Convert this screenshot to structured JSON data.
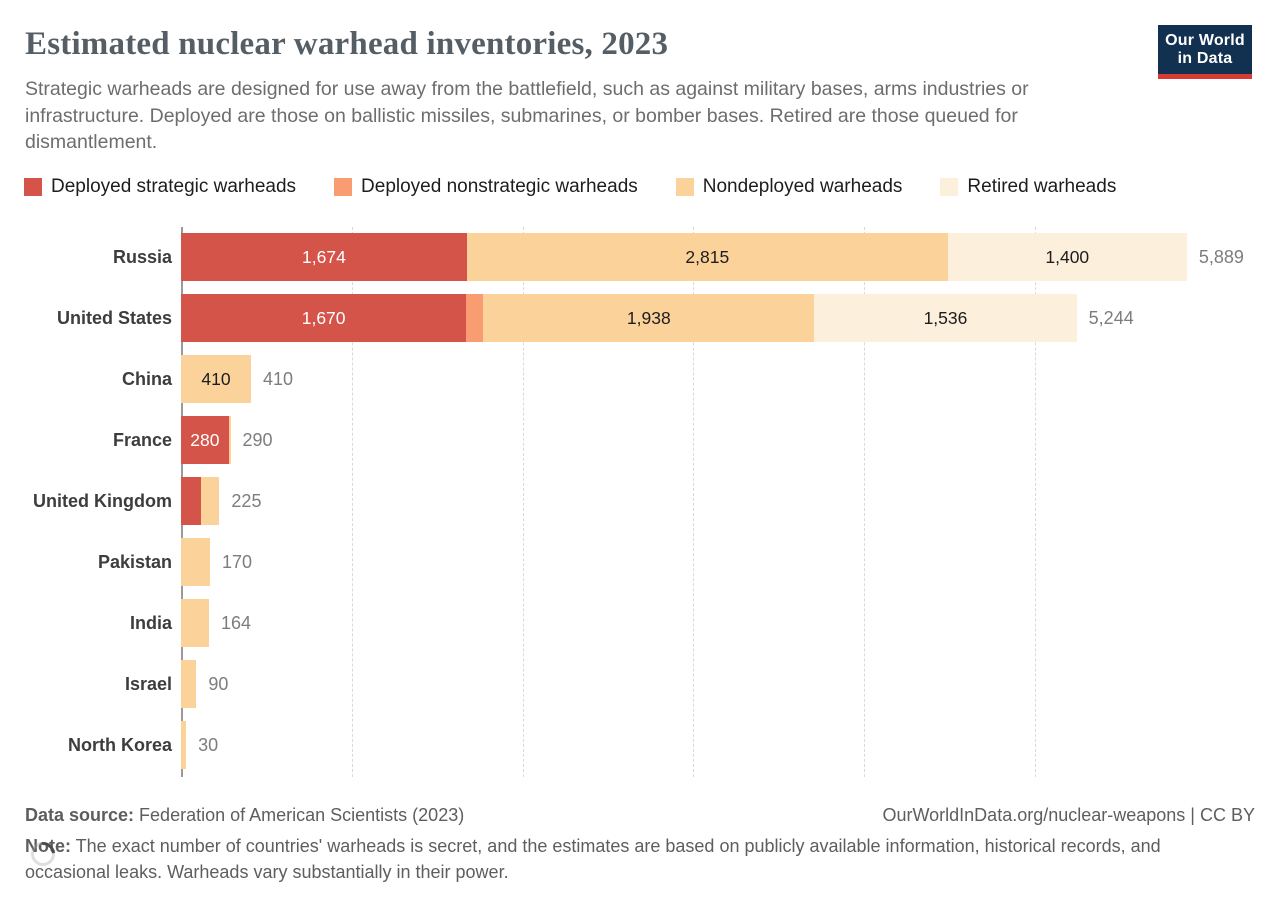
{
  "header": {
    "title": "Estimated nuclear warhead inventories, 2023",
    "subtitle": "Strategic warheads are designed for use away from the battlefield, such as against military bases, arms industries or infrastructure. Deployed are those on ballistic missiles, submarines, or bomber bases. Retired are those queued for dismantlement.",
    "logo": {
      "line1": "Our World",
      "line2": "in Data",
      "bg_color": "#12304f",
      "accent_color": "#d73b33"
    }
  },
  "chart_data": {
    "type": "bar",
    "orientation": "horizontal",
    "stacked": true,
    "title": "Estimated nuclear warhead inventories, 2023",
    "categories": [
      "Russia",
      "United States",
      "China",
      "France",
      "United Kingdom",
      "Pakistan",
      "India",
      "Israel",
      "North Korea"
    ],
    "series": [
      {
        "name": "Deployed strategic warheads",
        "color": "#d5544a",
        "label_color": "#ffffff",
        "values": [
          1674,
          1670,
          0,
          280,
          120,
          0,
          0,
          0,
          0
        ]
      },
      {
        "name": "Deployed nonstrategic warheads",
        "color": "#f99c72",
        "label_color": "#1d1d1d",
        "values": [
          0,
          100,
          0,
          0,
          0,
          0,
          0,
          0,
          0
        ]
      },
      {
        "name": "Nondeployed warheads",
        "color": "#fcd29b",
        "label_color": "#1d1d1d",
        "values": [
          2815,
          1938,
          410,
          10,
          105,
          170,
          164,
          90,
          30
        ]
      },
      {
        "name": "Retired warheads",
        "color": "#fcefdc",
        "label_color": "#1d1d1d",
        "values": [
          1400,
          1536,
          0,
          0,
          0,
          0,
          0,
          0,
          0
        ]
      }
    ],
    "totals": [
      5889,
      5244,
      410,
      290,
      225,
      170,
      164,
      90,
      30
    ],
    "xlim": [
      0,
      6240
    ],
    "x_gridlines": [
      1000,
      2000,
      3000,
      4000,
      5000
    ],
    "grid": "vertical dashed, no x-axis tick labels",
    "legend_position": "top",
    "total_label_color": "#7d7d7d",
    "axis_color": "#9a9a9a"
  },
  "footer": {
    "datasource_label": "Data source:",
    "datasource_text": " Federation of American Scientists (2023)",
    "credit_text": "OurWorldInData.org/nuclear-weapons | CC BY",
    "note_label": "Note:",
    "note_text": " The exact number of countries' warheads is secret, and the estimates are based on publicly available information, historical records, and occasional leaks. Warheads vary substantially in their power."
  }
}
